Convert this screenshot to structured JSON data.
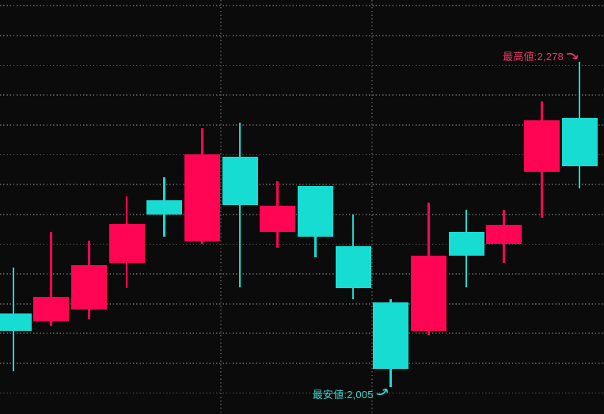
{
  "colors": {
    "background": "#0b0b0c",
    "grid": "#555555",
    "up": "#ff0553",
    "down": "#16dcd2",
    "high_label": "#e83a66",
    "low_label": "#39d5ca"
  },
  "chart_data": {
    "type": "candlestick",
    "title": "",
    "legend": "none",
    "grid": "dotted",
    "axis_labels_visible": false,
    "y_axis": {
      "unit": "price",
      "visible_min": 1995,
      "visible_max": 2330,
      "gridline_interval": 25,
      "gridline_prices": [
        2325,
        2300,
        2275,
        2250,
        2225,
        2200,
        2175,
        2150,
        2125,
        2100,
        2075,
        2050,
        2025,
        2000
      ]
    },
    "x_axis": {
      "periods": 16,
      "vertical_gridlines_between_periods": [
        [
          6,
          7
        ],
        [
          10,
          11
        ]
      ]
    },
    "candles": [
      {
        "period": 1,
        "open": 2067,
        "high": 2105,
        "low": 2018,
        "close": 2052,
        "direction": "down"
      },
      {
        "period": 2,
        "open": 2060,
        "high": 2135,
        "low": 2056,
        "close": 2081,
        "direction": "up"
      },
      {
        "period": 3,
        "open": 2070,
        "high": 2128,
        "low": 2062,
        "close": 2107,
        "direction": "up"
      },
      {
        "period": 4,
        "open": 2109,
        "high": 2165,
        "low": 2088,
        "close": 2142,
        "direction": "up"
      },
      {
        "period": 5,
        "open": 2162,
        "high": 2181,
        "low": 2131,
        "close": 2150,
        "direction": "down"
      },
      {
        "period": 6,
        "open": 2127,
        "high": 2222,
        "low": 2125,
        "close": 2200,
        "direction": "up"
      },
      {
        "period": 7,
        "open": 2198,
        "high": 2227,
        "low": 2089,
        "close": 2158,
        "direction": "down"
      },
      {
        "period": 8,
        "open": 2135,
        "high": 2178,
        "low": 2122,
        "close": 2157,
        "direction": "up"
      },
      {
        "period": 9,
        "open": 2174,
        "high": 2174,
        "low": 2114,
        "close": 2131,
        "direction": "down"
      },
      {
        "period": 10,
        "open": 2123,
        "high": 2150,
        "low": 2079,
        "close": 2088,
        "direction": "down"
      },
      {
        "period": 11,
        "open": 2076,
        "high": 2079,
        "low": 2005,
        "close": 2020,
        "direction": "down"
      },
      {
        "period": 12,
        "open": 2052,
        "high": 2160,
        "low": 2049,
        "close": 2115,
        "direction": "up"
      },
      {
        "period": 13,
        "open": 2135,
        "high": 2154,
        "low": 2089,
        "close": 2115,
        "direction": "down"
      },
      {
        "period": 14,
        "open": 2125,
        "high": 2154,
        "low": 2109,
        "close": 2141,
        "direction": "up"
      },
      {
        "period": 15,
        "open": 2186,
        "high": 2245,
        "low": 2147,
        "close": 2229,
        "direction": "up"
      },
      {
        "period": 16,
        "open": 2231,
        "high": 2278,
        "low": 2172,
        "close": 2190,
        "direction": "down"
      }
    ],
    "annotations": [
      {
        "id": "high",
        "text": "最高値:2,278",
        "value": 2278,
        "candle_period": 16,
        "color_role": "up"
      },
      {
        "id": "low",
        "text": "最安値:2,005",
        "value": 2005,
        "candle_period": 11,
        "color_role": "down"
      }
    ]
  }
}
